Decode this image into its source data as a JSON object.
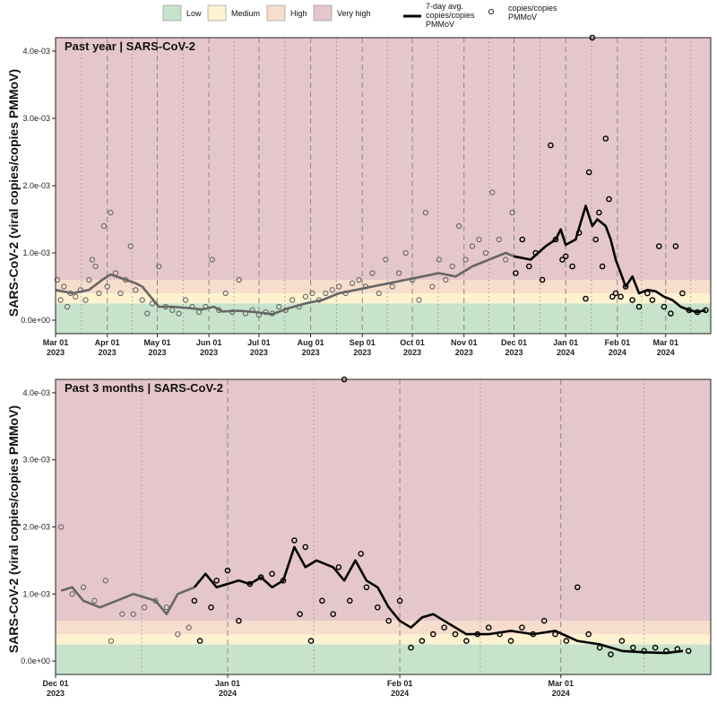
{
  "chart_data": [
    {
      "type": "scatter+line",
      "title": "Past year  |  SARS-CoV-2",
      "ylabel": "SARS-CoV-2 (viral copies/copies PMMoV)",
      "ylim": [
        -0.0002,
        0.0042
      ],
      "yticks": [
        "0.0e+00",
        "1.0e-03",
        "2.0e-03",
        "3.0e-03",
        "4.0e-03"
      ],
      "xlim_days": [
        0,
        393
      ],
      "xticks": [
        {
          "day": 0,
          "line1": "Mar 01",
          "line2": "2023"
        },
        {
          "day": 31,
          "line1": "Apr 01",
          "line2": "2023"
        },
        {
          "day": 61,
          "line1": "May 01",
          "line2": "2023"
        },
        {
          "day": 92,
          "line1": "Jun 01",
          "line2": "2023"
        },
        {
          "day": 122,
          "line1": "Jul 01",
          "line2": "2023"
        },
        {
          "day": 153,
          "line1": "Aug 01",
          "line2": "2023"
        },
        {
          "day": 184,
          "line1": "Sep 01",
          "line2": "2023"
        },
        {
          "day": 214,
          "line1": "Oct 01",
          "line2": "2023"
        },
        {
          "day": 245,
          "line1": "Nov 01",
          "line2": "2023"
        },
        {
          "day": 275,
          "line1": "Dec 01",
          "line2": "2023"
        },
        {
          "day": 306,
          "line1": "Jan 01",
          "line2": "2024"
        },
        {
          "day": 337,
          "line1": "Feb 01",
          "line2": "2024"
        },
        {
          "day": 366,
          "line1": "Mar 01",
          "line2": "2024"
        }
      ],
      "highlight_start_day": 275,
      "seven_day_avg": [
        [
          0,
          0.00045
        ],
        [
          10,
          0.0004
        ],
        [
          20,
          0.00045
        ],
        [
          28,
          0.0006
        ],
        [
          33,
          0.00068
        ],
        [
          40,
          0.00062
        ],
        [
          48,
          0.00055
        ],
        [
          52,
          0.0005
        ],
        [
          57,
          0.00035
        ],
        [
          62,
          0.0002
        ],
        [
          70,
          0.0002
        ],
        [
          80,
          0.00018
        ],
        [
          88,
          0.00016
        ],
        [
          95,
          0.0002
        ],
        [
          100,
          0.00013
        ],
        [
          110,
          0.00014
        ],
        [
          120,
          0.00012
        ],
        [
          130,
          9e-05
        ],
        [
          140,
          0.00018
        ],
        [
          150,
          0.00025
        ],
        [
          160,
          0.0003
        ],
        [
          170,
          0.0004
        ],
        [
          180,
          0.00045
        ],
        [
          190,
          0.0005
        ],
        [
          200,
          0.00055
        ],
        [
          210,
          0.0006
        ],
        [
          220,
          0.00065
        ],
        [
          230,
          0.0007
        ],
        [
          240,
          0.00065
        ],
        [
          250,
          0.0008
        ],
        [
          260,
          0.0009
        ],
        [
          270,
          0.001
        ],
        [
          275,
          0.00095
        ],
        [
          285,
          0.0009
        ],
        [
          294,
          0.0011
        ],
        [
          300,
          0.0012
        ],
        [
          303,
          0.00135
        ],
        [
          306,
          0.00112
        ],
        [
          312,
          0.0012
        ],
        [
          318,
          0.0017
        ],
        [
          322,
          0.0014
        ],
        [
          325,
          0.0015
        ],
        [
          330,
          0.0014
        ],
        [
          333,
          0.0012
        ],
        [
          336,
          0.0009
        ],
        [
          339,
          0.0007
        ],
        [
          342,
          0.0005
        ],
        [
          346,
          0.00065
        ],
        [
          350,
          0.0004
        ],
        [
          355,
          0.00045
        ],
        [
          360,
          0.00043
        ],
        [
          365,
          0.00035
        ],
        [
          370,
          0.0003
        ],
        [
          375,
          0.0002
        ],
        [
          380,
          0.00015
        ],
        [
          385,
          0.00012
        ],
        [
          390,
          0.00015
        ]
      ],
      "observations": [
        [
          1,
          0.0006
        ],
        [
          3,
          0.0003
        ],
        [
          5,
          0.0005
        ],
        [
          7,
          0.0002
        ],
        [
          9,
          0.0004
        ],
        [
          12,
          0.00035
        ],
        [
          15,
          0.00045
        ],
        [
          18,
          0.0003
        ],
        [
          20,
          0.0006
        ],
        [
          22,
          0.0009
        ],
        [
          24,
          0.0008
        ],
        [
          26,
          0.0004
        ],
        [
          29,
          0.0014
        ],
        [
          31,
          0.0005
        ],
        [
          33,
          0.0016
        ],
        [
          36,
          0.0007
        ],
        [
          39,
          0.0004
        ],
        [
          42,
          0.0006
        ],
        [
          45,
          0.0011
        ],
        [
          48,
          0.00045
        ],
        [
          52,
          0.0003
        ],
        [
          55,
          0.0001
        ],
        [
          58,
          0.00025
        ],
        [
          62,
          0.0008
        ],
        [
          66,
          0.0002
        ],
        [
          70,
          0.00015
        ],
        [
          74,
          0.0001
        ],
        [
          78,
          0.0003
        ],
        [
          82,
          0.0002
        ],
        [
          86,
          0.00012
        ],
        [
          90,
          0.0002
        ],
        [
          94,
          0.0009
        ],
        [
          98,
          0.00015
        ],
        [
          102,
          0.0004
        ],
        [
          106,
          0.00012
        ],
        [
          110,
          0.0006
        ],
        [
          114,
          0.0001
        ],
        [
          118,
          0.00015
        ],
        [
          122,
          8e-05
        ],
        [
          126,
          0.00012
        ],
        [
          130,
          0.0001
        ],
        [
          134,
          0.0002
        ],
        [
          138,
          0.00015
        ],
        [
          142,
          0.0003
        ],
        [
          146,
          0.0002
        ],
        [
          150,
          0.00035
        ],
        [
          154,
          0.0004
        ],
        [
          158,
          0.0003
        ],
        [
          162,
          0.0004
        ],
        [
          166,
          0.00045
        ],
        [
          170,
          0.0005
        ],
        [
          174,
          0.0004
        ],
        [
          178,
          0.00055
        ],
        [
          182,
          0.0006
        ],
        [
          186,
          0.0005
        ],
        [
          190,
          0.0007
        ],
        [
          194,
          0.0004
        ],
        [
          198,
          0.0009
        ],
        [
          202,
          0.0005
        ],
        [
          206,
          0.0007
        ],
        [
          210,
          0.001
        ],
        [
          214,
          0.0006
        ],
        [
          218,
          0.0003
        ],
        [
          222,
          0.0016
        ],
        [
          226,
          0.0005
        ],
        [
          230,
          0.0009
        ],
        [
          234,
          0.0006
        ],
        [
          238,
          0.0008
        ],
        [
          242,
          0.0014
        ],
        [
          246,
          0.0009
        ],
        [
          250,
          0.0011
        ],
        [
          254,
          0.0012
        ],
        [
          258,
          0.001
        ],
        [
          262,
          0.0019
        ],
        [
          266,
          0.0012
        ],
        [
          270,
          0.0009
        ],
        [
          274,
          0.0016
        ],
        [
          276,
          0.0007
        ],
        [
          280,
          0.0012
        ],
        [
          284,
          0.0008
        ],
        [
          288,
          0.001
        ],
        [
          292,
          0.0006
        ],
        [
          297,
          0.0026
        ],
        [
          300,
          0.0012
        ],
        [
          304,
          0.0009
        ],
        [
          306,
          0.00095
        ],
        [
          310,
          0.0008
        ],
        [
          314,
          0.0013
        ],
        [
          318,
          0.00032
        ],
        [
          320,
          0.0022
        ],
        [
          322,
          0.0042
        ],
        [
          324,
          0.0012
        ],
        [
          326,
          0.0016
        ],
        [
          328,
          0.0008
        ],
        [
          330,
          0.0027
        ],
        [
          332,
          0.0018
        ],
        [
          334,
          0.00035
        ],
        [
          336,
          0.0004
        ],
        [
          339,
          0.00035
        ],
        [
          342,
          0.0005
        ],
        [
          346,
          0.0003
        ],
        [
          350,
          0.0002
        ],
        [
          355,
          0.0004
        ],
        [
          358,
          0.0003
        ],
        [
          362,
          0.0011
        ],
        [
          365,
          0.0002
        ],
        [
          369,
          0.0001
        ],
        [
          372,
          0.0011
        ],
        [
          376,
          0.0004
        ],
        [
          380,
          0.00015
        ],
        [
          385,
          0.00012
        ],
        [
          390,
          0.00015
        ]
      ],
      "thresholds": [
        {
          "name": "Low",
          "from": -0.0002,
          "to": 0.00025,
          "color": "#c7e3cb"
        },
        {
          "name": "Medium",
          "from": 0.00025,
          "to": 0.0004,
          "color": "#fff2d1"
        },
        {
          "name": "High",
          "from": 0.0004,
          "to": 0.0006,
          "color": "#f7ddcc"
        },
        {
          "name": "Very high",
          "from": 0.0006,
          "to": 0.0042,
          "color": "#e5c7cb"
        }
      ]
    },
    {
      "type": "scatter+line",
      "title": "Past 3 months  |  SARS-CoV-2",
      "ylabel": "SARS-CoV-2 (viral copies/copies PMMoV)",
      "ylim": [
        -0.0002,
        0.0042
      ],
      "yticks": [
        "0.0e+00",
        "1.0e-03",
        "2.0e-03",
        "3.0e-03",
        "4.0e-03"
      ],
      "xlim_days": [
        0,
        118
      ],
      "xticks": [
        {
          "day": 0,
          "line1": "Dec 01",
          "line2": "2023"
        },
        {
          "day": 31,
          "line1": "Jan 01",
          "line2": "2024"
        },
        {
          "day": 62,
          "line1": "Feb 01",
          "line2": "2024"
        },
        {
          "day": 91,
          "line1": "Mar 01",
          "line2": "2024"
        }
      ],
      "highlight_start_day": 25,
      "seven_day_avg": [
        [
          1,
          0.00105
        ],
        [
          3,
          0.0011
        ],
        [
          5,
          0.0009
        ],
        [
          8,
          0.0008
        ],
        [
          11,
          0.0009
        ],
        [
          14,
          0.001
        ],
        [
          16,
          0.00095
        ],
        [
          18,
          0.0009
        ],
        [
          20,
          0.0007
        ],
        [
          22,
          0.001
        ],
        [
          25,
          0.0011
        ],
        [
          27,
          0.0013
        ],
        [
          29,
          0.0011
        ],
        [
          33,
          0.0012
        ],
        [
          35,
          0.00115
        ],
        [
          37,
          0.00125
        ],
        [
          39,
          0.0011
        ],
        [
          41,
          0.0012
        ],
        [
          43,
          0.0017
        ],
        [
          45,
          0.0014
        ],
        [
          47,
          0.0015
        ],
        [
          50,
          0.0014
        ],
        [
          52,
          0.0012
        ],
        [
          54,
          0.0015
        ],
        [
          56,
          0.0012
        ],
        [
          58,
          0.0011
        ],
        [
          60,
          0.0008
        ],
        [
          62,
          0.0006
        ],
        [
          64,
          0.0005
        ],
        [
          66,
          0.00065
        ],
        [
          68,
          0.0007
        ],
        [
          70,
          0.0006
        ],
        [
          74,
          0.0004
        ],
        [
          78,
          0.0004
        ],
        [
          82,
          0.00045
        ],
        [
          86,
          0.0004
        ],
        [
          90,
          0.00045
        ],
        [
          94,
          0.0003
        ],
        [
          98,
          0.00025
        ],
        [
          102,
          0.00015
        ],
        [
          106,
          0.00013
        ],
        [
          110,
          0.00012
        ],
        [
          113,
          0.00015
        ]
      ],
      "observations": [
        [
          1,
          0.002
        ],
        [
          3,
          0.001
        ],
        [
          5,
          0.0011
        ],
        [
          7,
          0.0009
        ],
        [
          9,
          0.0012
        ],
        [
          10,
          0.0003
        ],
        [
          12,
          0.0007
        ],
        [
          14,
          0.0007
        ],
        [
          16,
          0.0008
        ],
        [
          18,
          0.0009
        ],
        [
          20,
          0.0008
        ],
        [
          22,
          0.0004
        ],
        [
          24,
          0.0005
        ],
        [
          25,
          0.0009
        ],
        [
          26,
          0.0003
        ],
        [
          28,
          0.0008
        ],
        [
          29,
          0.0012
        ],
        [
          31,
          0.00135
        ],
        [
          33,
          0.0006
        ],
        [
          35,
          0.00115
        ],
        [
          37,
          0.00125
        ],
        [
          39,
          0.0013
        ],
        [
          41,
          0.0012
        ],
        [
          43,
          0.0018
        ],
        [
          44,
          0.0007
        ],
        [
          45,
          0.0017
        ],
        [
          46,
          0.0003
        ],
        [
          48,
          0.0009
        ],
        [
          50,
          0.0007
        ],
        [
          51,
          0.0014
        ],
        [
          52,
          0.0042
        ],
        [
          53,
          0.0009
        ],
        [
          55,
          0.0016
        ],
        [
          56,
          0.0011
        ],
        [
          58,
          0.0008
        ],
        [
          60,
          0.0006
        ],
        [
          62,
          0.0009
        ],
        [
          64,
          0.0002
        ],
        [
          66,
          0.0003
        ],
        [
          68,
          0.0004
        ],
        [
          70,
          0.0005
        ],
        [
          72,
          0.0004
        ],
        [
          74,
          0.0003
        ],
        [
          76,
          0.0004
        ],
        [
          78,
          0.0005
        ],
        [
          80,
          0.0004
        ],
        [
          82,
          0.0003
        ],
        [
          84,
          0.0005
        ],
        [
          86,
          0.0004
        ],
        [
          88,
          0.0006
        ],
        [
          90,
          0.0004
        ],
        [
          92,
          0.0003
        ],
        [
          94,
          0.0011
        ],
        [
          96,
          0.0004
        ],
        [
          98,
          0.0002
        ],
        [
          100,
          0.0001
        ],
        [
          102,
          0.0003
        ],
        [
          104,
          0.0002
        ],
        [
          106,
          0.00015
        ],
        [
          108,
          0.0002
        ],
        [
          110,
          0.00015
        ],
        [
          112,
          0.00018
        ],
        [
          114,
          0.00015
        ]
      ],
      "thresholds": [
        {
          "name": "Low",
          "from": -0.0002,
          "to": 0.00025,
          "color": "#c7e3cb"
        },
        {
          "name": "Medium",
          "from": 0.00025,
          "to": 0.0004,
          "color": "#fff2d1"
        },
        {
          "name": "High",
          "from": 0.0004,
          "to": 0.0006,
          "color": "#f7ddcc"
        },
        {
          "name": "Very high",
          "from": 0.0006,
          "to": 0.0042,
          "color": "#e5c7cb"
        }
      ]
    }
  ],
  "legend": {
    "low": "Low",
    "medium": "Medium",
    "high": "High",
    "very_high": "Very high",
    "avg_line1": "7-day avg.",
    "avg_line2": "copies/copies",
    "avg_line3": "PMMoV",
    "obs_line1": "copies/copies",
    "obs_line2": "PMMoV"
  },
  "colors": {
    "low": "#c7e3cb",
    "medium": "#fff2d1",
    "high": "#f7ddcc",
    "very_high": "#e5c7cb",
    "recent_line": "#000000",
    "older_line": "#666666"
  }
}
